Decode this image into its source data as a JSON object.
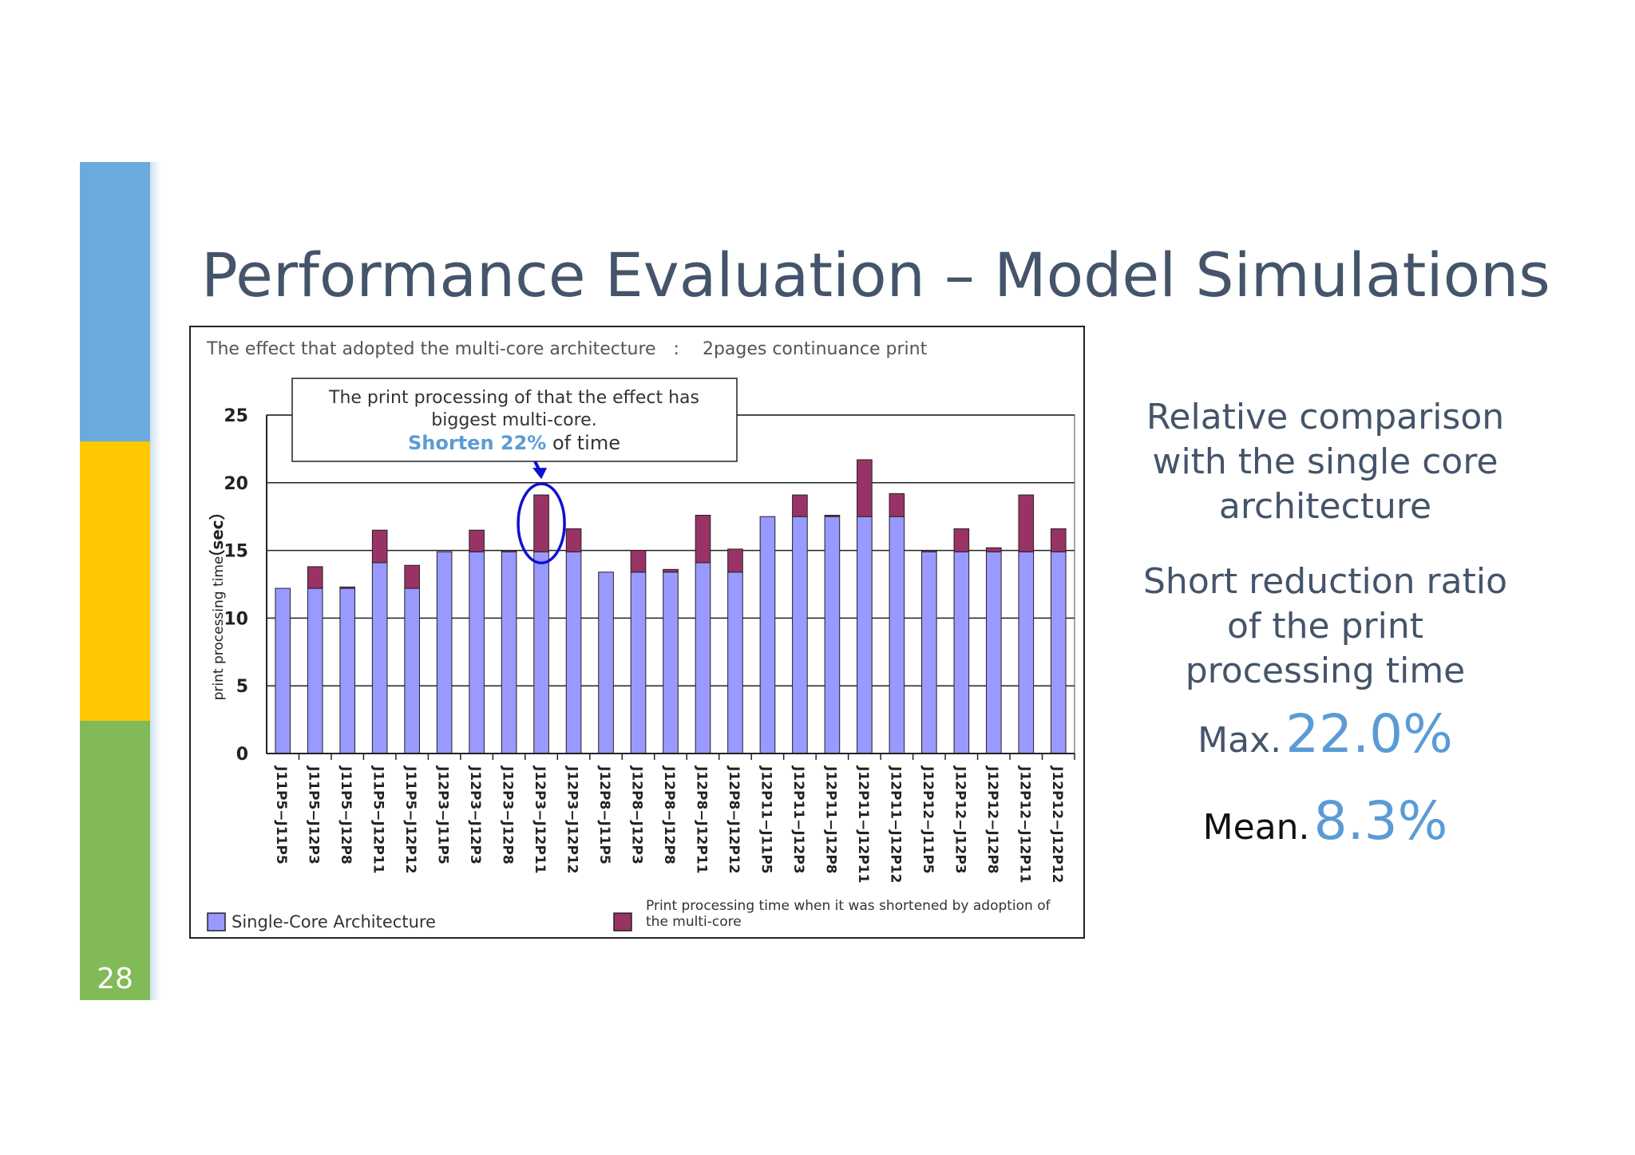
{
  "slide": {
    "number": "28",
    "title": "Performance Evaluation – Model Simulations",
    "colors": {
      "blue": "#6aaadc",
      "yellow": "#ffc800",
      "green": "#82ba58",
      "title": "#44546a",
      "accent": "#5b9bd5"
    }
  },
  "right_panel": {
    "comparison": [
      "Relative comparison",
      "with the single core",
      "architecture"
    ],
    "reduction": [
      "Short reduction ratio",
      "of the print",
      "processing time"
    ],
    "max_label": "Max.",
    "max_value": "22.0%",
    "mean_label": "Mean.",
    "mean_value": "8.3%"
  },
  "chart_data": {
    "type": "bar",
    "stacked": true,
    "title": "The effect that adopted the multi-core architecture　:　 2pages continuance print",
    "ylabel": "print processing time",
    "yunit": "（sec）",
    "ylim": [
      0,
      25
    ],
    "yticks": [
      0,
      5,
      10,
      15,
      20,
      25
    ],
    "grid": true,
    "legend_position": "bottom",
    "categories": [
      "J11P5−J11P5",
      "J11P5−J12P3",
      "J11P5−J12P8",
      "J11P5−J12P11",
      "J11P5−J12P12",
      "J12P3−J11P5",
      "J12P3−J12P3",
      "J12P3−J12P8",
      "J12P3−J12P11",
      "J12P3−J12P12",
      "J12P8−J11P5",
      "J12P8−J12P3",
      "J12P8−J12P8",
      "J12P8−J12P11",
      "J12P8−J12P12",
      "J12P11−J11P5",
      "J12P11−J12P3",
      "J12P11−J12P8",
      "J12P11−J12P11",
      "J12P11−J12P12",
      "J12P12−J11P5",
      "J12P12−J12P3",
      "J12P12−J12P8",
      "J12P12−J12P11",
      "J12P12−J12P12"
    ],
    "series": [
      {
        "name": "Single-Core Architecture",
        "color": "#9999ff",
        "values": [
          12.2,
          12.2,
          12.2,
          14.1,
          12.2,
          14.9,
          14.9,
          14.9,
          14.9,
          14.9,
          13.4,
          13.4,
          13.4,
          14.1,
          13.4,
          17.5,
          17.5,
          17.5,
          17.5,
          17.5,
          14.9,
          14.9,
          14.9,
          14.9,
          14.9
        ]
      },
      {
        "name": "Print processing time when it was shortened by adoption of the multi-core",
        "color": "#993366",
        "values": [
          0.0,
          1.6,
          0.1,
          2.4,
          1.7,
          0.0,
          1.6,
          0.1,
          4.2,
          1.7,
          0.0,
          1.6,
          0.2,
          3.5,
          1.7,
          0.0,
          1.6,
          0.1,
          4.2,
          1.7,
          0.1,
          1.7,
          0.3,
          4.2,
          1.7
        ]
      }
    ],
    "annotation": {
      "line1": "The print processing of that the effect has",
      "line2": "biggest multi-core.",
      "highlight": "Shorten 22%",
      "suffix": " of time",
      "target_category_index": 8
    },
    "legend": {
      "single": "Single-Core Architecture",
      "multi_line1": "Print processing time when it was shortened by adoption of",
      "multi_line2": "the multi-core"
    }
  }
}
